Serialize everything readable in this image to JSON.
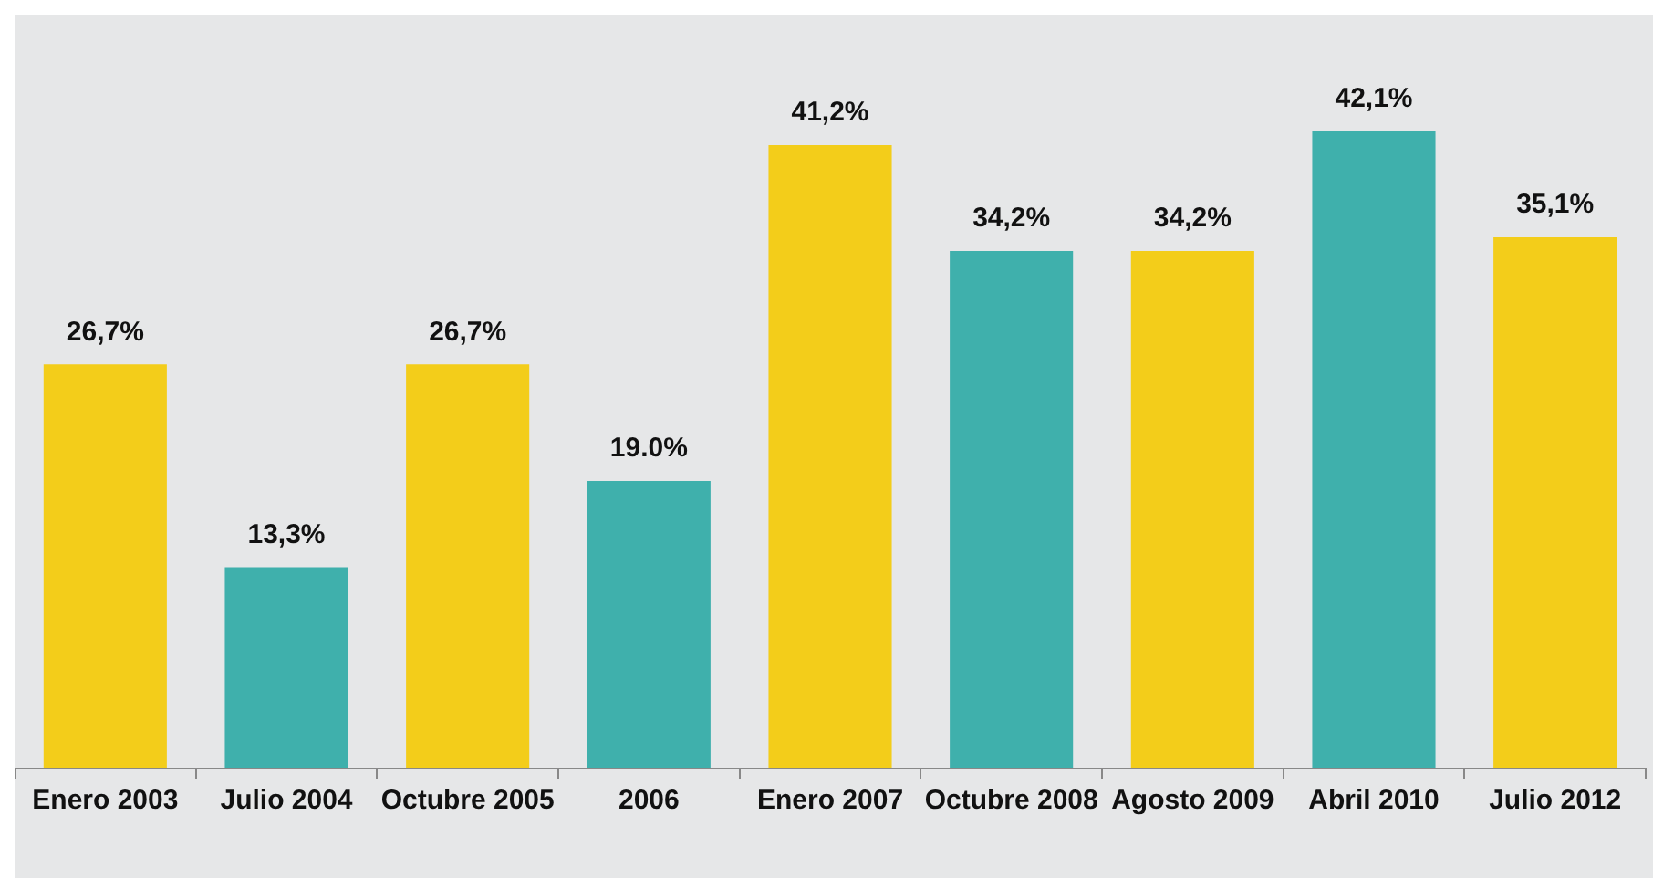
{
  "chart_data": {
    "type": "bar",
    "categories": [
      "Enero 2003",
      "Julio 2004",
      "Octubre 2005",
      "2006",
      "Enero 2007",
      "Octubre 2008",
      "Agosto 2009",
      "Abril 2010",
      "Julio 2012"
    ],
    "values": [
      26.7,
      13.3,
      26.7,
      19.0,
      41.2,
      34.2,
      34.2,
      42.1,
      35.1
    ],
    "colors": [
      "#f3cd1a",
      "#3fb0ac",
      "#f3cd1a",
      "#3fb0ac",
      "#f3cd1a",
      "#3fb0ac",
      "#f3cd1a",
      "#3fb0ac",
      "#f3cd1a"
    ],
    "value_labels": [
      "26,7%",
      "13,3%",
      "26,7%",
      "19.0%",
      "41,2%",
      "34,2%",
      "34,2%",
      "42,1%",
      "35,1%"
    ],
    "grid": false,
    "legend": false
  }
}
